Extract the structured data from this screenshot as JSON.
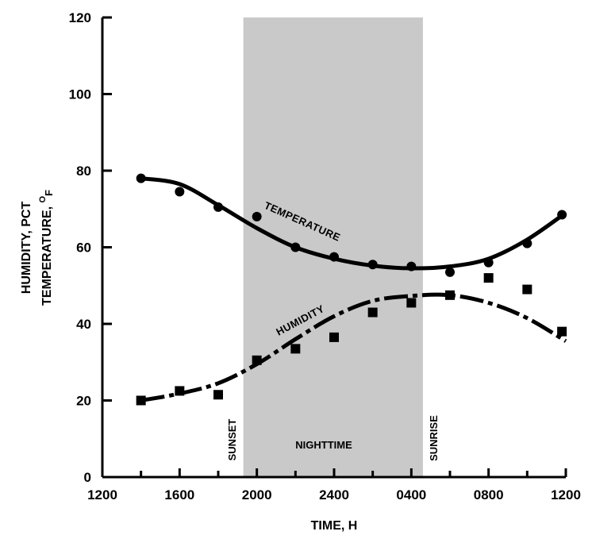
{
  "chart_data": {
    "type": "line",
    "xlabel": "TIME, H",
    "ylabel_line1": "HUMIDITY, PCT",
    "ylabel_line2": "TEMPERATURE, ",
    "ylabel_unit_super": "O",
    "ylabel_unit_sub": "F",
    "x_ticks": [
      "1200",
      "1600",
      "2000",
      "2400",
      "0400",
      "0800",
      "1200"
    ],
    "y_ticks": [
      "0",
      "20",
      "40",
      "60",
      "80",
      "100",
      "120"
    ],
    "x_range_hours": [
      12,
      36
    ],
    "ylim": [
      0,
      120
    ],
    "grid": false,
    "night_band_hours": [
      19.3,
      28.6
    ],
    "annotations": {
      "sunset": "SUNSET",
      "sunrise": "SUNRISE",
      "nighttime": "NIGHTTIME"
    },
    "series": [
      {
        "name": "TEMPERATURE",
        "marker": "circle",
        "line_style": "solid",
        "points": [
          [
            14.0,
            78
          ],
          [
            16.0,
            74.5
          ],
          [
            18.0,
            70.5
          ],
          [
            20.0,
            68
          ],
          [
            22.0,
            60
          ],
          [
            24.0,
            57.5
          ],
          [
            26.0,
            55.5
          ],
          [
            28.0,
            55
          ],
          [
            30.0,
            53.5
          ],
          [
            32.0,
            56
          ],
          [
            34.0,
            61
          ],
          [
            35.8,
            68.5
          ]
        ],
        "fit": [
          [
            14.0,
            78
          ],
          [
            16.0,
            76.5
          ],
          [
            18.0,
            71
          ],
          [
            20.0,
            65
          ],
          [
            22.0,
            60
          ],
          [
            24.0,
            57
          ],
          [
            26.0,
            55.2
          ],
          [
            28.0,
            54.5
          ],
          [
            30.0,
            55
          ],
          [
            32.0,
            57
          ],
          [
            34.0,
            62
          ],
          [
            36.0,
            69
          ]
        ]
      },
      {
        "name": "HUMIDITY",
        "marker": "square",
        "line_style": "dash-dot",
        "points": [
          [
            14.0,
            20
          ],
          [
            16.0,
            22.5
          ],
          [
            18.0,
            21.5
          ],
          [
            20.0,
            30.5
          ],
          [
            22.0,
            33.5
          ],
          [
            24.0,
            36.5
          ],
          [
            26.0,
            43
          ],
          [
            28.0,
            45.5
          ],
          [
            30.0,
            47.5
          ],
          [
            32.0,
            52
          ],
          [
            34.0,
            49
          ],
          [
            35.8,
            38
          ]
        ],
        "fit": [
          [
            14.0,
            20
          ],
          [
            16.0,
            21.8
          ],
          [
            18.0,
            24.5
          ],
          [
            20.0,
            29.5
          ],
          [
            22.0,
            36
          ],
          [
            24.0,
            42
          ],
          [
            26.0,
            46
          ],
          [
            28.0,
            47.3
          ],
          [
            30.0,
            47.5
          ],
          [
            32.0,
            45.5
          ],
          [
            34.0,
            41.5
          ],
          [
            36.0,
            35.5
          ]
        ]
      }
    ]
  }
}
